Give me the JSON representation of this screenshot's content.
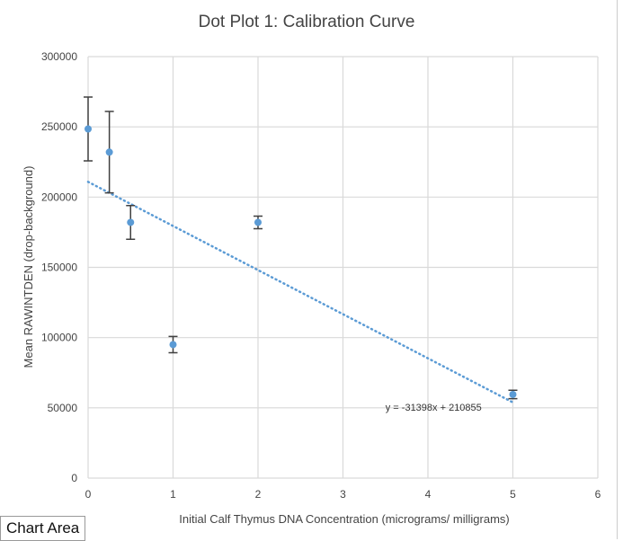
{
  "chart_data": {
    "type": "scatter",
    "title": "Dot Plot 1: Calibration Curve",
    "xlabel": "Initial Calf Thymus DNA Concentration (micrograms/ milligrams)",
    "ylabel": "Mean RAWINTDEN (drop-background)",
    "xlim": [
      0,
      6
    ],
    "ylim": [
      0,
      300000
    ],
    "xticks": [
      0,
      1,
      2,
      3,
      4,
      5,
      6
    ],
    "yticks": [
      0,
      50000,
      100000,
      150000,
      200000,
      250000,
      300000
    ],
    "grid": true,
    "series": [
      {
        "name": "Mean RAWINTDEN",
        "color": "#5b9bd5",
        "x": [
          0,
          0.25,
          0.5,
          1,
          2,
          5
        ],
        "y": [
          248500,
          232000,
          182000,
          95000,
          182000,
          59500
        ],
        "error": [
          22700,
          29000,
          12000,
          5800,
          4500,
          3000
        ]
      }
    ],
    "trendline": {
      "slope": -31398,
      "intercept": 210855,
      "x_range": [
        0,
        5
      ],
      "equation": "y = -31398x + 210855",
      "color": "#5b9bd5"
    }
  },
  "tooltip": "Chart Area"
}
